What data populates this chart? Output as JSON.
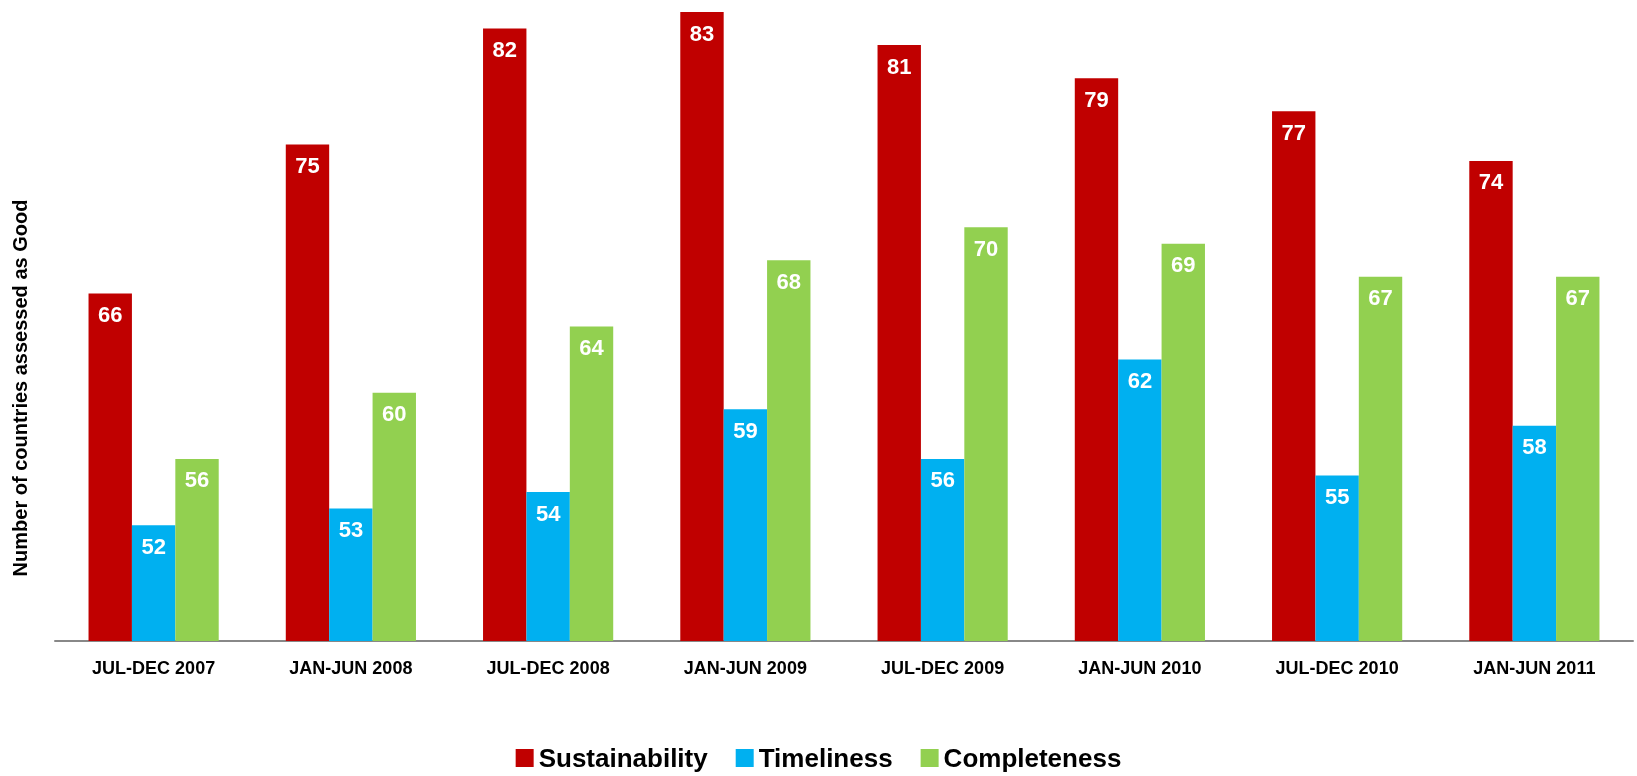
{
  "chart_data": {
    "type": "bar",
    "ylabel": "Number of countries assessed as Good",
    "categories": [
      "JUL-DEC 2007",
      "JAN-JUN 2008",
      "JUL-DEC 2008",
      "JAN-JUN 2009",
      "JUL-DEC 2009",
      "JAN-JUN 2010",
      "JUL-DEC 2010",
      "JAN-JUN 2011"
    ],
    "series": [
      {
        "name": "Sustainability",
        "color": "#c00000",
        "values": [
          66,
          75,
          82,
          83,
          81,
          79,
          77,
          74
        ]
      },
      {
        "name": "Timeliness",
        "color": "#00b0f0",
        "values": [
          52,
          53,
          54,
          59,
          56,
          62,
          55,
          58
        ]
      },
      {
        "name": "Completeness",
        "color": "#92d050",
        "values": [
          56,
          60,
          64,
          68,
          70,
          69,
          67,
          67
        ]
      }
    ],
    "ylim": [
      45,
      83
    ],
    "data_labels": true,
    "legend": "bottom"
  }
}
